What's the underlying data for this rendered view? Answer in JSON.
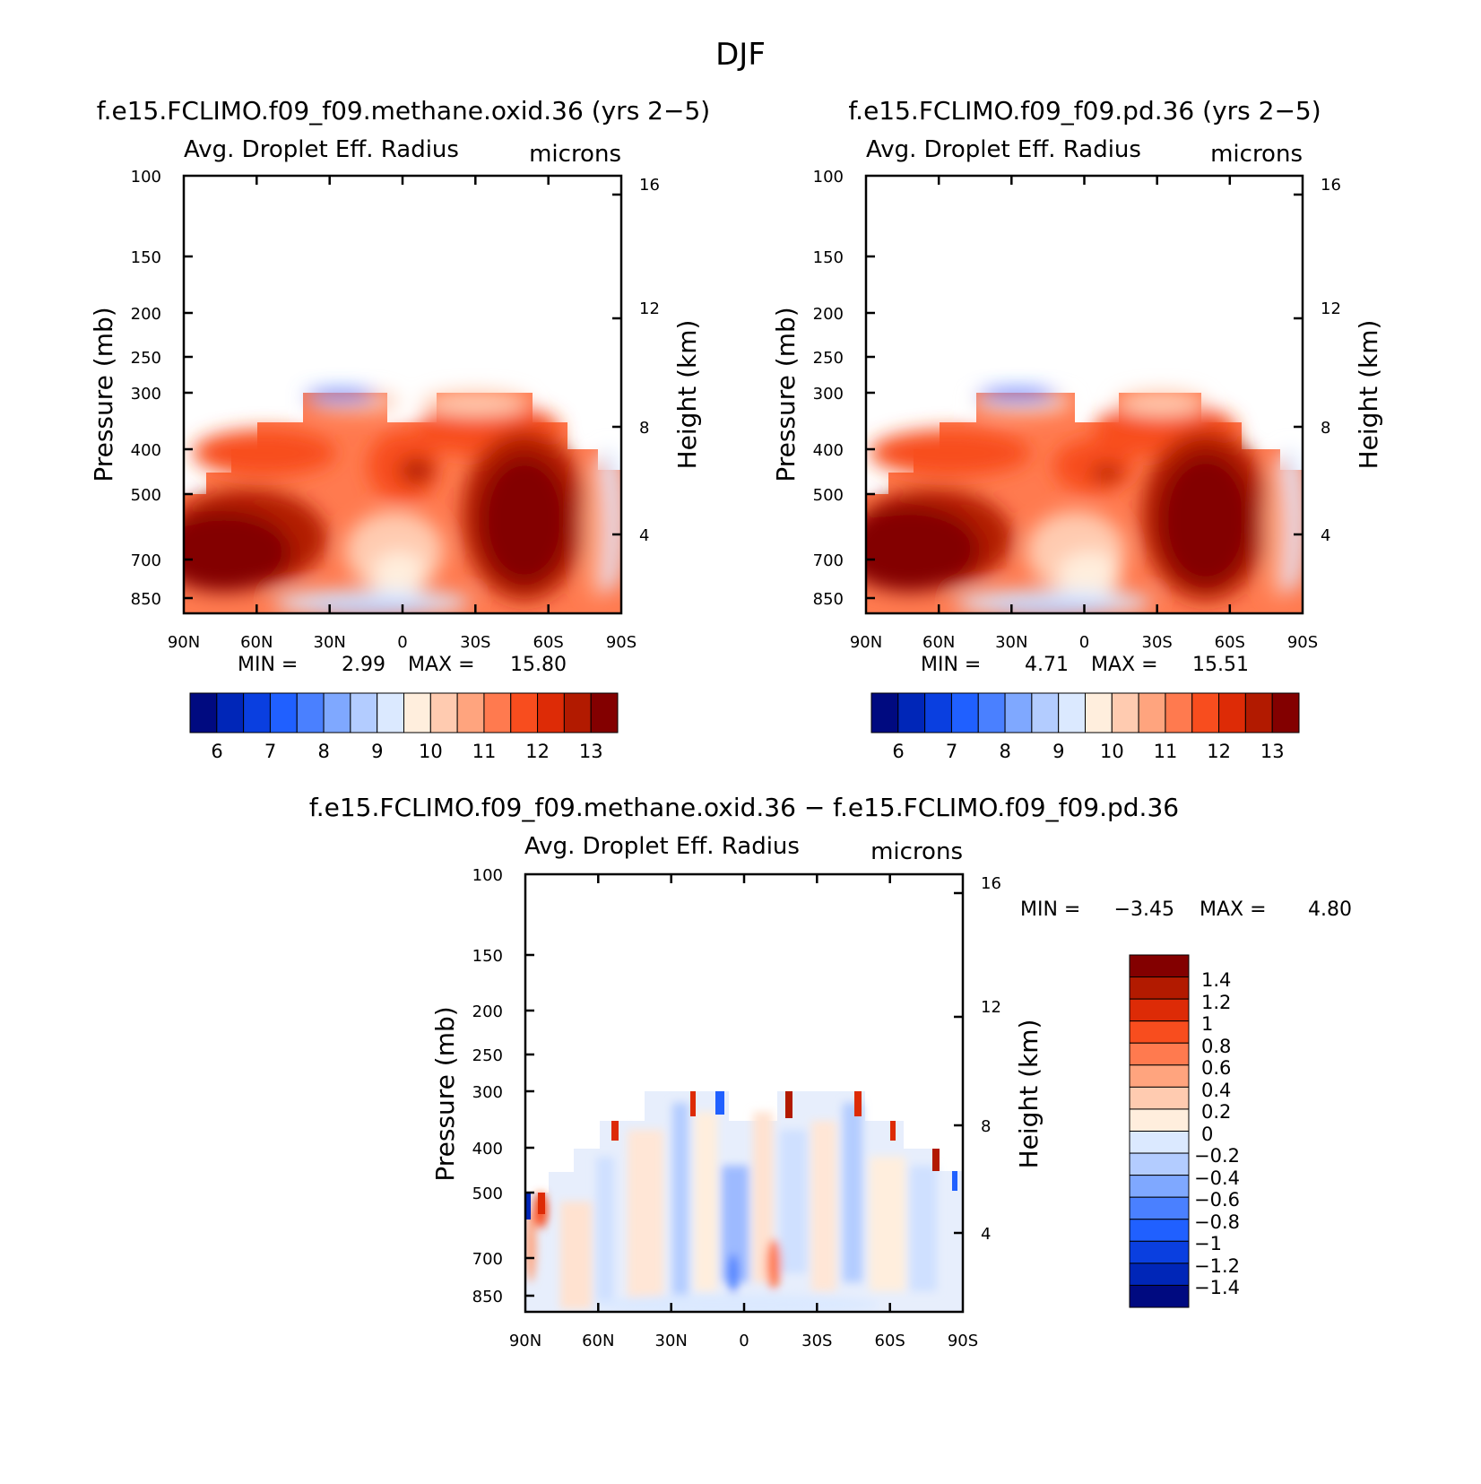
{
  "figure": {
    "title": "DJF"
  },
  "panels": [
    {
      "key": "oxid",
      "title": "f.e15.FCLIMO.f09_f09.methane.oxid.36 (yrs 2−5)",
      "field_label": "Avg. Droplet Eff. Radius",
      "units": "microns",
      "y_label": "Pressure (mb)",
      "y2_label": "Height (km)",
      "min_label": "MIN =",
      "min_value": "2.99",
      "max_label": "MAX =",
      "max_value": "15.80"
    },
    {
      "key": "pd",
      "title": "f.e15.FCLIMO.f09_f09.pd.36 (yrs 2−5)",
      "field_label": "Avg. Droplet Eff. Radius",
      "units": "microns",
      "y_label": "Pressure (mb)",
      "y2_label": "Height (km)",
      "min_label": "MIN =",
      "min_value": "4.71",
      "max_label": "MAX =",
      "max_value": "15.51"
    },
    {
      "key": "diff",
      "title": "f.e15.FCLIMO.f09_f09.methane.oxid.36 − f.e15.FCLIMO.f09_f09.pd.36",
      "field_label": "Avg. Droplet Eff. Radius",
      "units": "microns",
      "y_label": "Pressure (mb)",
      "y2_label": "Height (km)",
      "min_label": "MIN =",
      "min_value": "−3.45",
      "max_label": "MAX =",
      "max_value": "4.80"
    }
  ],
  "chart_data": [
    {
      "type": "heatmap",
      "title": "f.e15.FCLIMO.f09_f09.methane.oxid.36 (yrs 2−5)",
      "field": "Avg. Droplet Eff. Radius (microns)",
      "x_ticks": [
        "90N",
        "60N",
        "30N",
        "0",
        "30S",
        "60S",
        "90S"
      ],
      "y_ticks": [
        "100",
        "150",
        "200",
        "250",
        "300",
        "400",
        "500",
        "700",
        "850"
      ],
      "y2_ticks": [
        "16",
        "12",
        "8",
        "4"
      ],
      "colorbar_levels": [
        6,
        7,
        8,
        9,
        10,
        11,
        12,
        13
      ],
      "min": 2.99,
      "max": 15.8,
      "approx_features": [
        {
          "region": "60N-80N, 550-850 mb",
          "value": "> 13"
        },
        {
          "region": "40S-65S, 450-800 mb",
          "value": "> 13"
        },
        {
          "region": "near-surface 30N-0 (850 mb)",
          "value": "8-9"
        },
        {
          "region": "cloud top ~300 mb 40N-10N",
          "value": "6-8"
        }
      ]
    },
    {
      "type": "heatmap",
      "title": "f.e15.FCLIMO.f09_f09.pd.36 (yrs 2−5)",
      "field": "Avg. Droplet Eff. Radius (microns)",
      "x_ticks": [
        "90N",
        "60N",
        "30N",
        "0",
        "30S",
        "60S",
        "90S"
      ],
      "y_ticks": [
        "100",
        "150",
        "200",
        "250",
        "300",
        "400",
        "500",
        "700",
        "850"
      ],
      "y2_ticks": [
        "16",
        "12",
        "8",
        "4"
      ],
      "colorbar_levels": [
        6,
        7,
        8,
        9,
        10,
        11,
        12,
        13
      ],
      "min": 4.71,
      "max": 15.51,
      "approx_features": [
        {
          "region": "60N-80N, 550-850 mb",
          "value": "> 13"
        },
        {
          "region": "40S-65S, 450-800 mb",
          "value": "> 13"
        },
        {
          "region": "near-surface 30N-0 (850 mb)",
          "value": "8-9"
        },
        {
          "region": "cloud top ~300 mb 40N-10N",
          "value": "6-8"
        }
      ]
    },
    {
      "type": "heatmap",
      "title": "f.e15.FCLIMO.f09_f09.methane.oxid.36 − f.e15.FCLIMO.f09_f09.pd.36",
      "field": "Avg. Droplet Eff. Radius (microns)",
      "x_ticks": [
        "90N",
        "60N",
        "30N",
        "0",
        "30S",
        "60S",
        "90S"
      ],
      "y_ticks": [
        "100",
        "150",
        "200",
        "250",
        "300",
        "400",
        "500",
        "700",
        "850"
      ],
      "y2_ticks": [
        "16",
        "12",
        "8",
        "4"
      ],
      "colorbar_levels": [
        "1.4",
        "1.2",
        "1",
        "0.8",
        "0.6",
        "0.4",
        "0.2",
        "0",
        "−0.2",
        "−0.4",
        "−0.6",
        "−0.8",
        "−1",
        "−1.2",
        "−1.4"
      ],
      "min": -3.45,
      "max": 4.8,
      "approx_features": [
        {
          "region": "most of domain",
          "value": "-0.2 to 0.2"
        },
        {
          "region": "15S-25S, 650-750 mb",
          "value": "0.8 to 1.4"
        },
        {
          "region": "30N-0, 700-850 mb",
          "value": "-0.4 to -0.8"
        }
      ]
    }
  ],
  "colors": {
    "abs_colorbar": [
      "#000a80",
      "#0026b8",
      "#0a3fe0",
      "#2060ff",
      "#4a80ff",
      "#7fa8ff",
      "#b3ccff",
      "#dbe9ff",
      "#ffeedd",
      "#ffcbb0",
      "#ffa47e",
      "#ff7a4f",
      "#f84d1e",
      "#dd2b06",
      "#b21a00",
      "#830000"
    ],
    "diff_colorbar": [
      "#830000",
      "#b21a00",
      "#dd2b06",
      "#f84d1e",
      "#ff7a4f",
      "#ffa47e",
      "#ffcbb0",
      "#ffeedd",
      "#dbe9ff",
      "#b3ccff",
      "#7fa8ff",
      "#4a80ff",
      "#2060ff",
      "#0a3fe0",
      "#0026b8",
      "#000a80"
    ]
  }
}
